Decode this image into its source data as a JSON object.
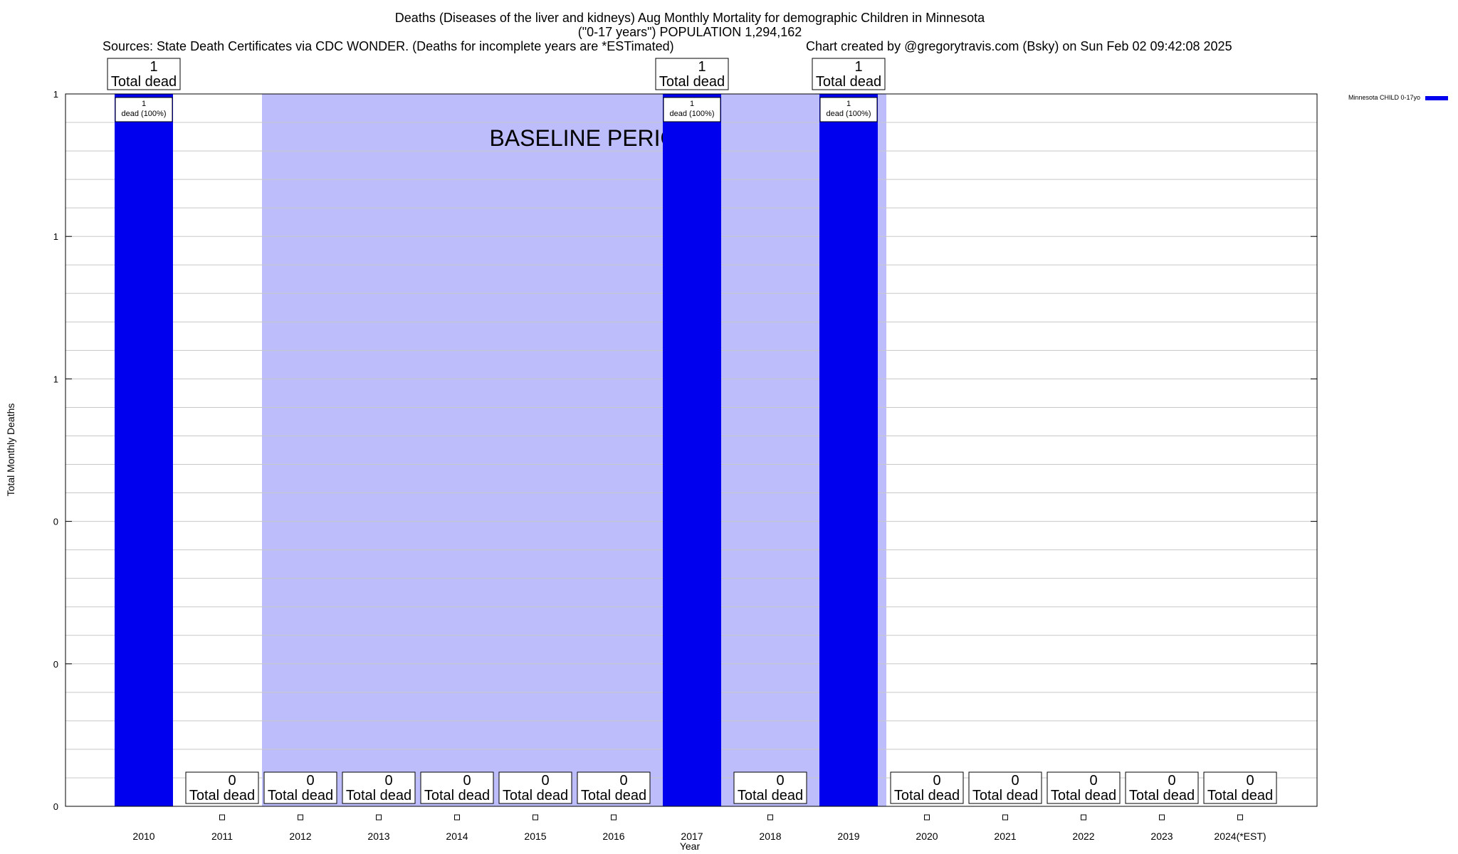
{
  "chart_data": {
    "type": "bar",
    "title": "Deaths (Diseases of the liver and kidneys) Aug Monthly Mortality for demographic Children in Minnesota",
    "subtitle": "(\"0-17 years\") POPULATION 1,294,162",
    "sources": "Sources: State Death Certificates via CDC WONDER. (Deaths for incomplete years are *ESTimated)",
    "credit": "Chart created by @gregorytravis.com (Bsky) on Sun Feb 02 09:42:08 2025",
    "xlabel": "Year",
    "ylabel": "Total Monthly Deaths",
    "categories": [
      "2010",
      "2011",
      "2012",
      "2013",
      "2014",
      "2015",
      "2016",
      "2017",
      "2018",
      "2019",
      "2020",
      "2021",
      "2022",
      "2023",
      "2024(*EST)"
    ],
    "series": [
      {
        "name": "Minnesota CHILD 0-17yo",
        "values": [
          1,
          0,
          0,
          0,
          0,
          0,
          0,
          1,
          0,
          1,
          0,
          0,
          0,
          0,
          0
        ]
      }
    ],
    "ylim": [
      0,
      1
    ],
    "y_tick_labels": [
      "0",
      "0",
      "0",
      "1",
      "1",
      "1"
    ],
    "y_tick_values": [
      0,
      0.2,
      0.4,
      0.6,
      0.8,
      1.0
    ],
    "total_label": "Total dead",
    "inner_label_suffix": "dead (100%)",
    "baseline_label": "BASELINE PERIOD",
    "baseline_range": [
      "2012",
      "2019"
    ],
    "grid": true,
    "legend_position": "top-right",
    "colors": {
      "bar": "#0000ee",
      "baseline": "#bdbdfb",
      "grid": "#c8c8c8"
    }
  }
}
